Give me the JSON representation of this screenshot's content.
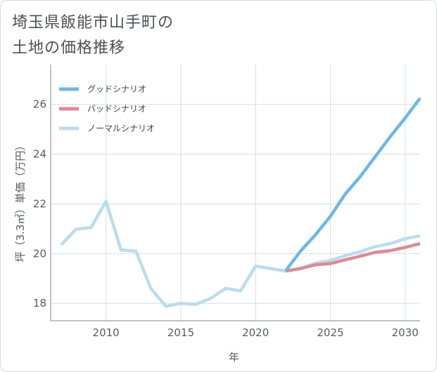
{
  "title_line1": "埼玉県飯能市山手町の",
  "title_line2": "土地の価格推移",
  "chart_data": {
    "type": "line",
    "title": "埼玉県飯能市山手町の土地の価格推移",
    "xlabel": "年",
    "ylabel": "坪（3.3㎡）単価（万円）",
    "xlim": [
      2006.3,
      2031
    ],
    "ylim": [
      17.3,
      27.6
    ],
    "xticks": [
      2010,
      2015,
      2020,
      2025,
      2030
    ],
    "yticks": [
      18,
      20,
      22,
      24,
      26
    ],
    "series": [
      {
        "name": "グッドシナリオ",
        "color": "#6cb8e8",
        "x": [
          2022,
          2023,
          2024,
          2025,
          2026,
          2027,
          2028,
          2029,
          2030,
          2031
        ],
        "values": [
          19.3,
          20.1,
          20.75,
          21.5,
          22.4,
          23.1,
          23.9,
          24.7,
          25.45,
          26.25
        ]
      },
      {
        "name": "バッドシナリオ",
        "color": "#de8a92",
        "x": [
          2022,
          2023,
          2024,
          2025,
          2026,
          2027,
          2028,
          2029,
          2030,
          2031
        ],
        "values": [
          19.3,
          19.4,
          19.55,
          19.6,
          19.75,
          19.9,
          20.05,
          20.12,
          20.25,
          20.4
        ]
      },
      {
        "name": "ノーマルシナリオ",
        "color": "#bcdcee",
        "x": [
          2007,
          2008,
          2009,
          2010,
          2011,
          2012,
          2013,
          2014,
          2015,
          2016,
          2017,
          2018,
          2019,
          2020,
          2021,
          2022,
          2023,
          2024,
          2025,
          2026,
          2027,
          2028,
          2029,
          2030,
          2031
        ],
        "values": [
          20.35,
          20.98,
          21.05,
          22.1,
          20.15,
          20.1,
          18.6,
          17.88,
          18.0,
          17.96,
          18.2,
          18.6,
          18.5,
          19.5,
          19.4,
          19.3,
          19.4,
          19.62,
          19.72,
          19.92,
          20.08,
          20.28,
          20.4,
          20.6,
          20.72
        ]
      }
    ]
  }
}
